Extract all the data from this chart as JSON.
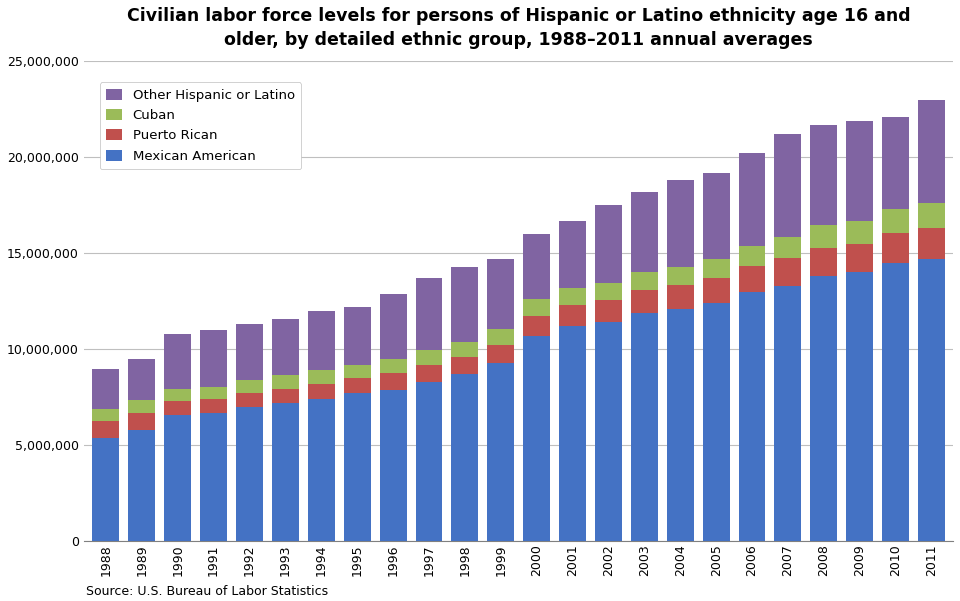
{
  "title": "Civilian labor force levels for persons of Hispanic or Latino ethnicity age 16 and\nolder, by detailed ethnic group, 1988–2011 annual averages",
  "source": "Source: U.S. Bureau of Labor Statistics",
  "years": [
    1988,
    1989,
    1990,
    1991,
    1992,
    1993,
    1994,
    1995,
    1996,
    1997,
    1998,
    1999,
    2000,
    2001,
    2002,
    2003,
    2004,
    2005,
    2006,
    2007,
    2008,
    2009,
    2010,
    2011
  ],
  "mexican_american": [
    5400000,
    5800000,
    6600000,
    6700000,
    7000000,
    7200000,
    7400000,
    7700000,
    7900000,
    8300000,
    8700000,
    9300000,
    10700000,
    11200000,
    11400000,
    11900000,
    12100000,
    12400000,
    13000000,
    13300000,
    13800000,
    14000000,
    14500000,
    14700000
  ],
  "puerto_rican": [
    850000,
    900000,
    700000,
    700000,
    750000,
    750000,
    800000,
    800000,
    850000,
    900000,
    900000,
    950000,
    1050000,
    1100000,
    1150000,
    1200000,
    1250000,
    1300000,
    1350000,
    1450000,
    1500000,
    1500000,
    1550000,
    1600000
  ],
  "cuban": [
    650000,
    650000,
    650000,
    650000,
    650000,
    700000,
    700000,
    700000,
    750000,
    750000,
    800000,
    800000,
    850000,
    900000,
    900000,
    950000,
    950000,
    1000000,
    1050000,
    1100000,
    1150000,
    1200000,
    1250000,
    1300000
  ],
  "other_hispanic": [
    2100000,
    2150000,
    2850000,
    2950000,
    2900000,
    2950000,
    3100000,
    3000000,
    3400000,
    3750000,
    3900000,
    3650000,
    3400000,
    3500000,
    4050000,
    4150000,
    4500000,
    4500000,
    4800000,
    5350000,
    5250000,
    5200000,
    4800000,
    5400000
  ],
  "colors": {
    "mexican_american": "#4472C4",
    "puerto_rican": "#C0504D",
    "cuban": "#9BBB59",
    "other_hispanic": "#8064A2"
  },
  "ylim": [
    0,
    25000000
  ],
  "yticks": [
    0,
    5000000,
    10000000,
    15000000,
    20000000,
    25000000
  ],
  "background_color": "#FFFFFF",
  "plot_background": "#FFFFFF",
  "grid_color": "#BFBFBF"
}
